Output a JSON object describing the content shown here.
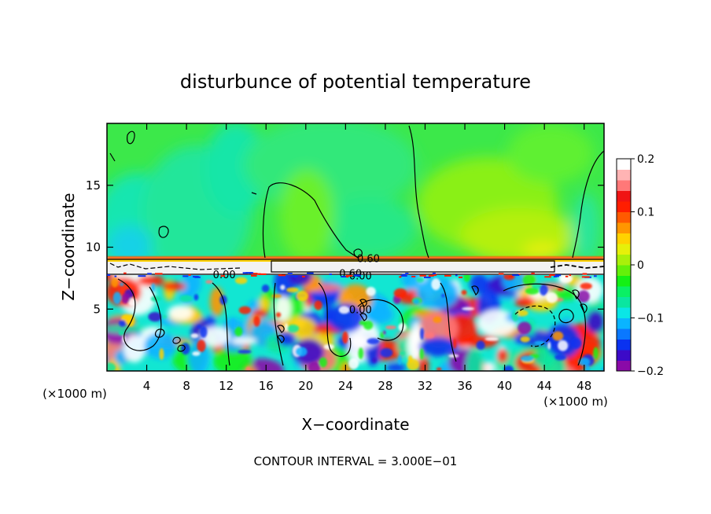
{
  "chart_data": {
    "type": "heatmap",
    "title": "disturbunce of potential temperature",
    "xlabel": "X−coordinate",
    "ylabel": "Z−coordinate",
    "x_unit_left": "(×1000 m)",
    "x_unit_right": "(×1000 m)",
    "footer": "CONTOUR INTERVAL = 3.000E−01",
    "xlim": [
      0,
      50
    ],
    "ylim": [
      0,
      20
    ],
    "x_ticks": [
      4,
      8,
      12,
      16,
      20,
      24,
      28,
      32,
      36,
      40,
      44,
      48
    ],
    "y_ticks": [
      5,
      10,
      15
    ],
    "colorbar": {
      "vmin": -0.2,
      "vmax": 0.2,
      "tick_labels": [
        "0.2",
        "0.1",
        "0",
        "−0.1",
        "−0.2"
      ],
      "tick_values": [
        0.2,
        0.1,
        0,
        -0.1,
        -0.2
      ],
      "colors": [
        "#8a0aa8",
        "#3c0ac8",
        "#0a32f0",
        "#0a78ff",
        "#0ab4ff",
        "#0ae6e6",
        "#0ae6a0",
        "#0af064",
        "#14f014",
        "#64f00a",
        "#aaf00a",
        "#e6f00a",
        "#ffd200",
        "#ff9600",
        "#ff5a00",
        "#ff1e00",
        "#f01414",
        "#ff7878",
        "#ffb4b4",
        "#ffffff"
      ]
    },
    "contour_labels": [
      {
        "text": "0.60",
        "x": 26.3,
        "z": 9.1
      },
      {
        "text": "0.00",
        "x": 11.8,
        "z": 7.8
      },
      {
        "text": "0.60",
        "x": 24.5,
        "z": 7.9
      },
      {
        "text": "0.00",
        "x": 25.5,
        "z": 7.7
      },
      {
        "text": "0.00",
        "x": 25.5,
        "z": 5.0
      }
    ],
    "layers": [
      {
        "name": "upper",
        "z_range": [
          9.2,
          20
        ],
        "dominant_value": 0.0
      },
      {
        "name": "interface",
        "z_range": [
          7.8,
          9.2
        ],
        "dominant_value": 0.0
      },
      {
        "name": "lower",
        "z_range": [
          0,
          7.8
        ],
        "value_range": [
          -0.2,
          0.2
        ]
      }
    ]
  }
}
